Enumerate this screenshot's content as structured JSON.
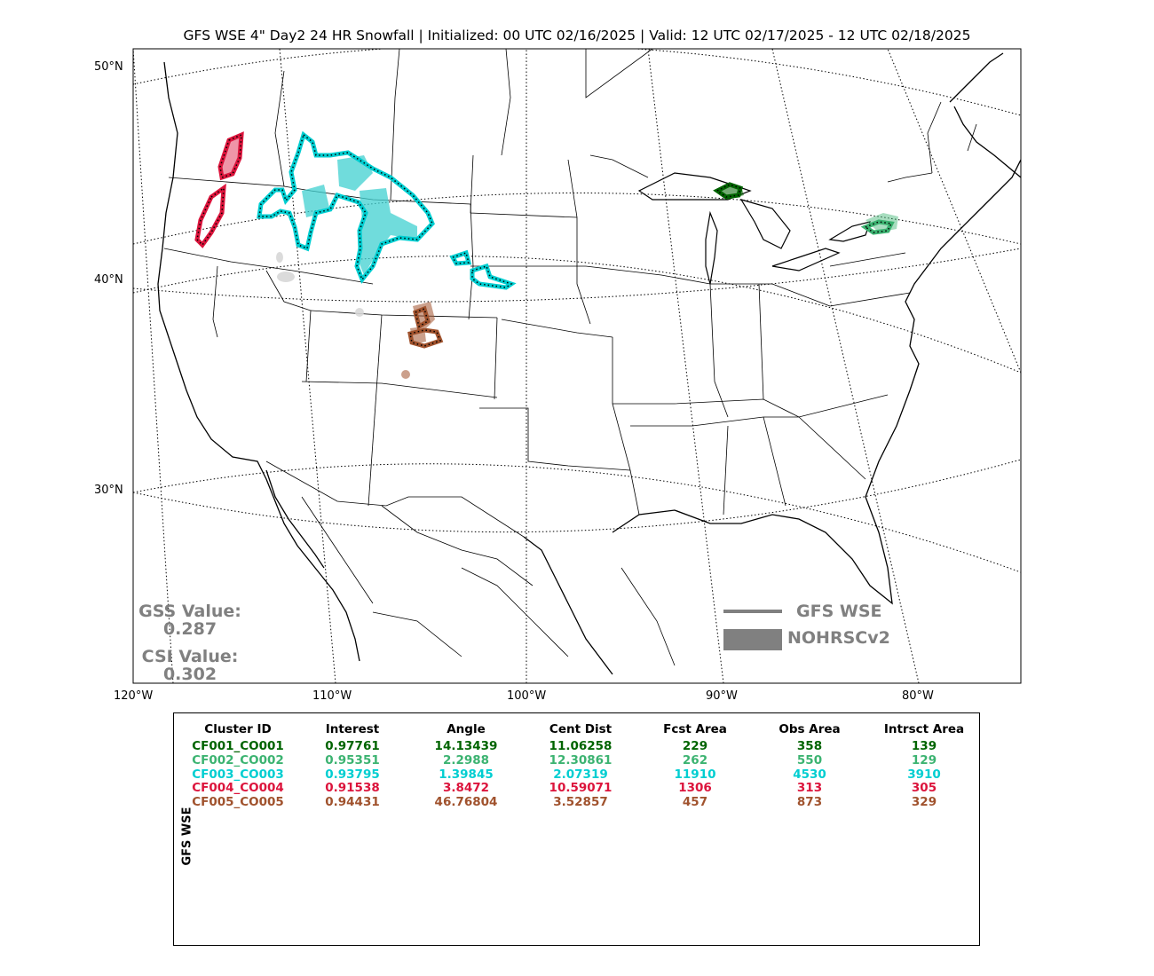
{
  "title": "GFS WSE 4\" Day2 24 HR Snowfall | Initialized: 00 UTC 02/16/2025 | Valid: 12 UTC 02/17/2025 - 12 UTC 02/18/2025",
  "map": {
    "lat_labels": [
      "50°N",
      "40°N",
      "30°N"
    ],
    "lon_labels": [
      "120°W",
      "110°W",
      "100°W",
      "90°W",
      "80°W"
    ]
  },
  "scores": {
    "gss_label": "GSS Value:",
    "gss_value": "0.287",
    "csi_label": "CSI Value:",
    "csi_value": "0.302"
  },
  "legend": {
    "line_label": "GFS WSE",
    "fill_label": "NOHRSCv2",
    "color": "#808080"
  },
  "table": {
    "side_label": "GFS WSE",
    "headers": [
      "Cluster ID",
      "Interest",
      "Angle",
      "Cent Dist",
      "Fcst Area",
      "Obs Area",
      "Intrsct Area"
    ],
    "rows": [
      {
        "color": "#006400",
        "cells": [
          "CF001_CO001",
          "0.97761",
          "14.13439",
          "11.06258",
          "229",
          "358",
          "139"
        ]
      },
      {
        "color": "#3cb371",
        "cells": [
          "CF002_CO002",
          "0.95351",
          "2.2988",
          "12.30861",
          "262",
          "550",
          "129"
        ]
      },
      {
        "color": "#00ced1",
        "cells": [
          "CF003_CO003",
          "0.93795",
          "1.39845",
          "2.07319",
          "11910",
          "4530",
          "3910"
        ]
      },
      {
        "color": "#dc143c",
        "cells": [
          "CF004_CO004",
          "0.91538",
          "3.8472",
          "10.59071",
          "1306",
          "313",
          "305"
        ]
      },
      {
        "color": "#a0522d",
        "cells": [
          "CF005_CO005",
          "0.94431",
          "46.76804",
          "3.52857",
          "457",
          "873",
          "329"
        ]
      }
    ]
  }
}
